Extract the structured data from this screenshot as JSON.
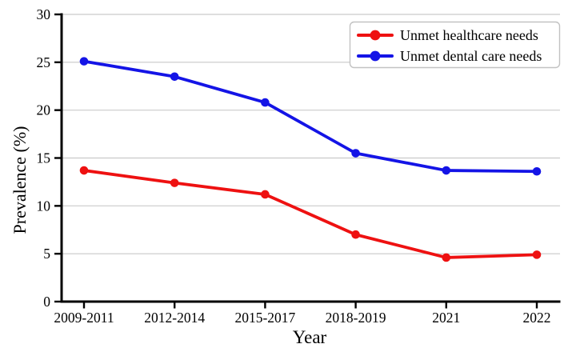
{
  "page": {
    "background": "#ffffff"
  },
  "chart_data": {
    "type": "line",
    "title": "",
    "xlabel": "Year",
    "ylabel": "Prevalence (%)",
    "categories": [
      "2009-2011",
      "2012-2014",
      "2015-2017",
      "2018-2019",
      "2021",
      "2022"
    ],
    "series": [
      {
        "name": "Unmet healthcare needs",
        "color": "#ee1111",
        "marker": "circle",
        "values": [
          13.7,
          12.4,
          11.2,
          7.0,
          4.6,
          4.9
        ]
      },
      {
        "name": "Unmet dental care needs",
        "color": "#1414e6",
        "marker": "circle",
        "values": [
          25.1,
          23.5,
          20.8,
          15.5,
          13.7,
          13.6
        ]
      }
    ],
    "ylim": [
      0,
      30
    ],
    "yticks": [
      0,
      5,
      10,
      15,
      20,
      25,
      30
    ],
    "grid": "horizontal",
    "grid_color": "#c9c9c9",
    "axis_color": "#000000",
    "legend_position": "upper right",
    "legend_bg": "#ffffff",
    "legend_border_color": "#c2c2c2"
  }
}
